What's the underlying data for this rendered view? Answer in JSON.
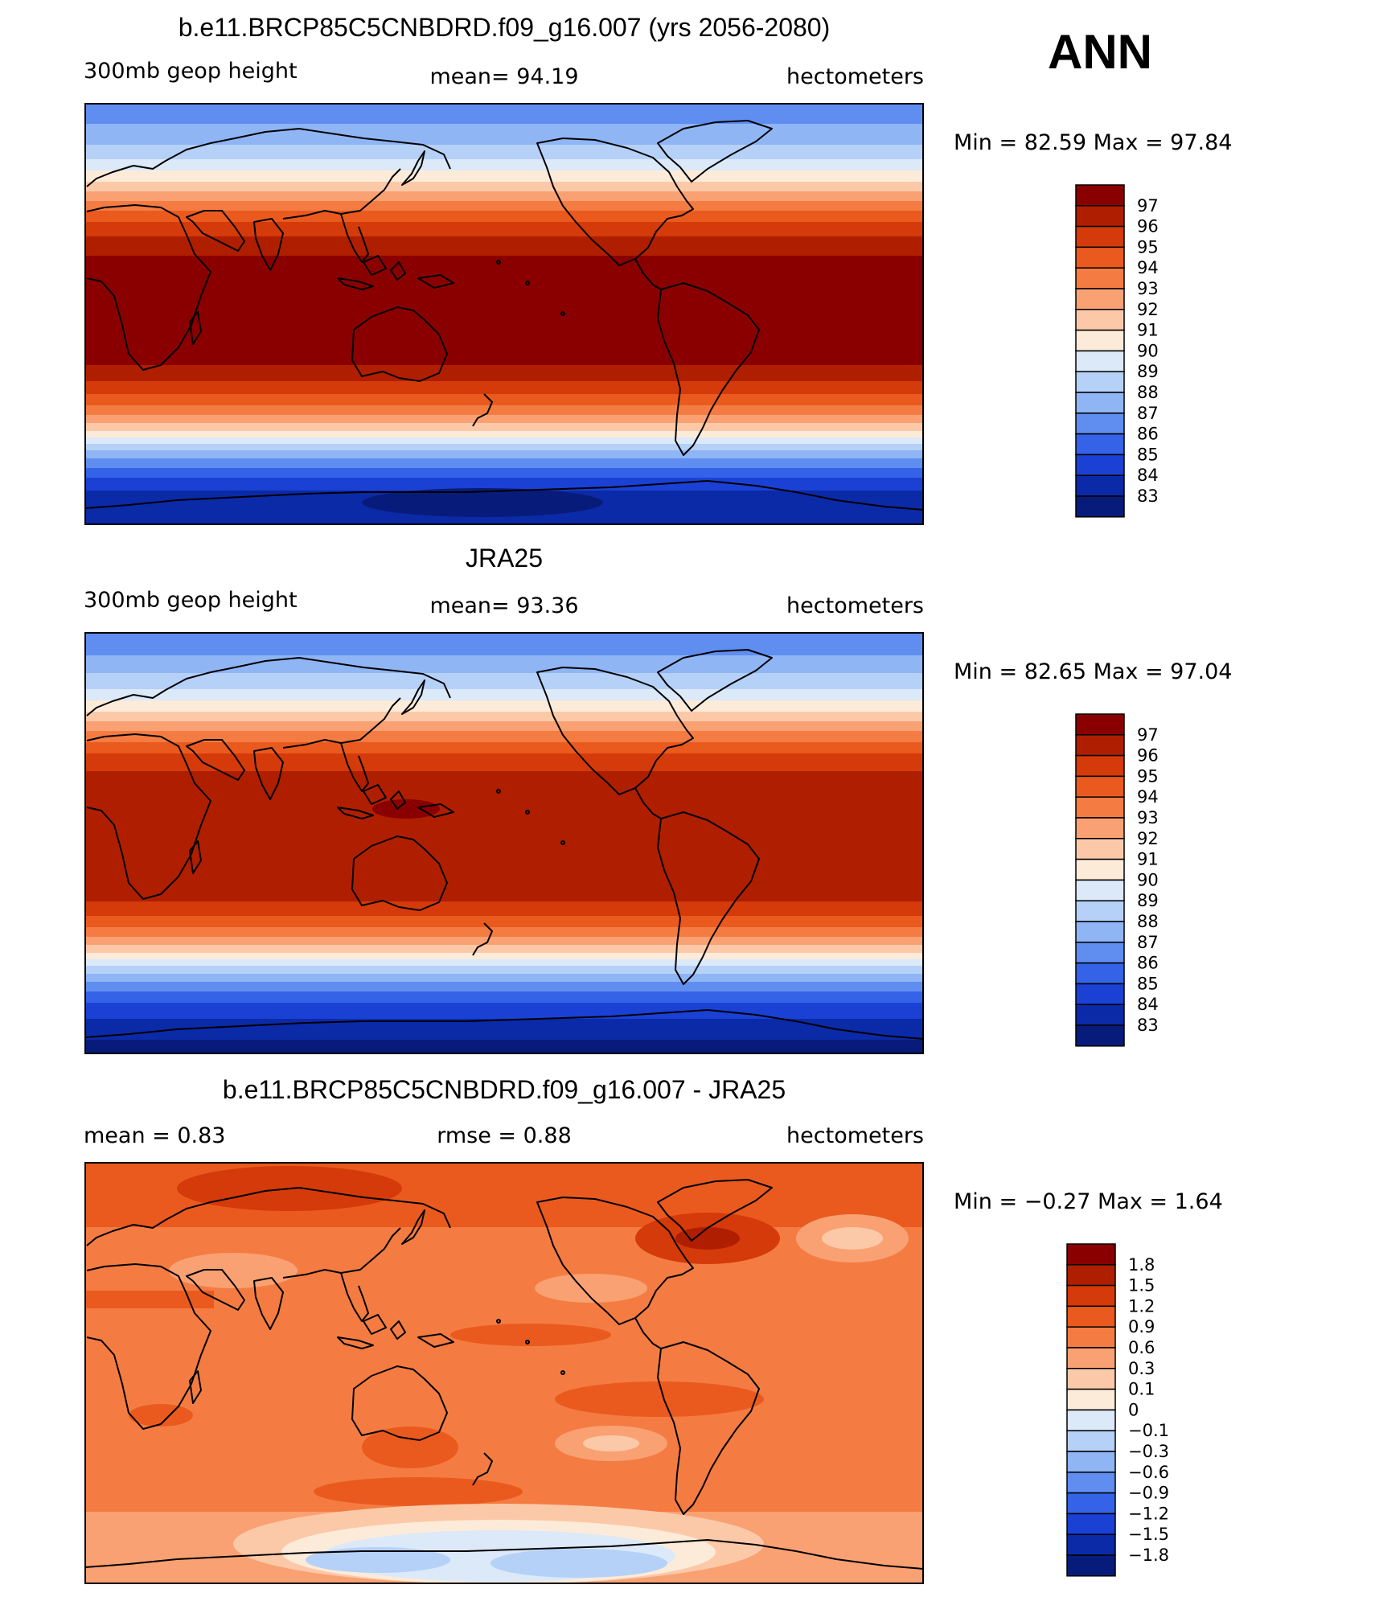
{
  "season": "ANN",
  "panels": [
    {
      "title": "b.e11.BRCP85C5CNBDRD.f09_g16.007 (yrs 2056-2080)",
      "left_label": "300mb  geop  height",
      "center_label": "mean=   94.19",
      "right_label": "hectometers",
      "minmax": "Min  =    82.59  Max  =    97.84",
      "levels": [
        "97",
        "96",
        "95",
        "94",
        "93",
        "92",
        "91",
        "90",
        "89",
        "88",
        "87",
        "86",
        "85",
        "84",
        "83"
      ]
    },
    {
      "title": "JRA25",
      "left_label": "300mb  geop  height",
      "center_label": "mean=   93.36",
      "right_label": "hectometers",
      "minmax": "Min  =    82.65  Max  =    97.04",
      "levels": [
        "97",
        "96",
        "95",
        "94",
        "93",
        "92",
        "91",
        "90",
        "89",
        "88",
        "87",
        "86",
        "85",
        "84",
        "83"
      ]
    },
    {
      "title": "b.e11.BRCP85C5CNBDRD.f09_g16.007 - JRA25",
      "left_label": "mean  =     0.83",
      "center_label": "rmse  =     0.88",
      "right_label": "hectometers",
      "minmax": "Min  =   −0.27  Max  =     1.64",
      "levels": [
        "1.8",
        "1.5",
        "1.2",
        "0.9",
        "0.6",
        "0.3",
        "0.1",
        "0",
        "−0.1",
        "−0.3",
        "−0.6",
        "−0.9",
        "−1.2",
        "−1.5",
        "−1.8"
      ]
    }
  ],
  "colors": {
    "abs_scale": [
      "#8a0000",
      "#b01e00",
      "#d43a0a",
      "#ea5a1e",
      "#f47c42",
      "#f9a173",
      "#fcc9a8",
      "#fdebd9",
      "#dbe9f9",
      "#b6d1f7",
      "#8fb5f5",
      "#5f8ef0",
      "#3563e8",
      "#1a41d4",
      "#0b2aa8",
      "#071c7a"
    ],
    "diff_scale": [
      "#8a0000",
      "#b01e00",
      "#d43a0a",
      "#ea5a1e",
      "#f47c42",
      "#f9a173",
      "#fcc9a8",
      "#fdebd9",
      "#dbe9f9",
      "#b6d1f7",
      "#8fb5f5",
      "#5f8ef0",
      "#3563e8",
      "#1a41d4",
      "#0b2aa8",
      "#071c7a"
    ]
  }
}
